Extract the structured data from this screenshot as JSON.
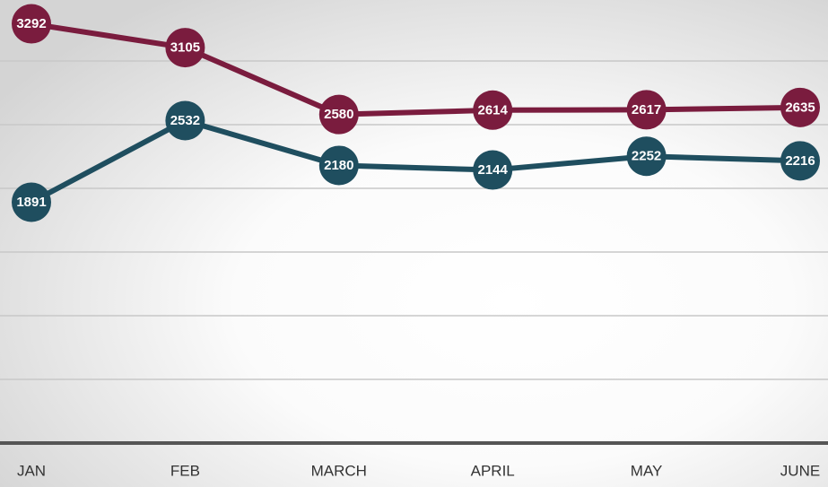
{
  "chart_data": {
    "type": "line",
    "categories": [
      "JAN",
      "FEB",
      "MARCH",
      "APRIL",
      "MAY",
      "JUNE"
    ],
    "series": [
      {
        "color": "#7a1c3e",
        "values": [
          3292,
          3105,
          2580,
          2614,
          2617,
          2635
        ]
      },
      {
        "color": "#1f4e5f",
        "values": [
          1891,
          2532,
          2180,
          2144,
          2252,
          2216
        ]
      }
    ],
    "ylim": [
      0,
      3500
    ],
    "yticks": [
      0,
      500,
      1000,
      1500,
      2000,
      2500,
      3000
    ],
    "grid": true
  }
}
